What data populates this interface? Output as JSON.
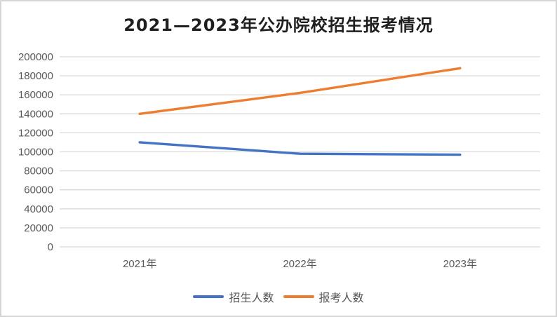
{
  "chart_data": {
    "type": "line",
    "title": "2021—2023年公办院校招生报考情况",
    "categories": [
      "2021年",
      "2022年",
      "2023年"
    ],
    "series": [
      {
        "name": "招生人数",
        "color": "#4472C4",
        "values": [
          110000,
          98000,
          97000
        ]
      },
      {
        "name": "报考人数",
        "color": "#ED7D31",
        "values": [
          140000,
          162000,
          188000
        ]
      }
    ],
    "y_axis": {
      "min": 0,
      "max": 200000,
      "step": 20000,
      "tick_labels": [
        "0",
        "20000",
        "40000",
        "60000",
        "80000",
        "100000",
        "120000",
        "140000",
        "160000",
        "180000",
        "200000"
      ]
    },
    "xlabel": "",
    "ylabel": "",
    "legend_position": "bottom",
    "grid": true,
    "colors": {
      "gridline": "#D9D9D9",
      "axis_text": "#595959",
      "title_text": "#1F1F1F",
      "legend_text": "#555555",
      "border": "#D5D5D5",
      "background": "#FFFFFF"
    }
  }
}
